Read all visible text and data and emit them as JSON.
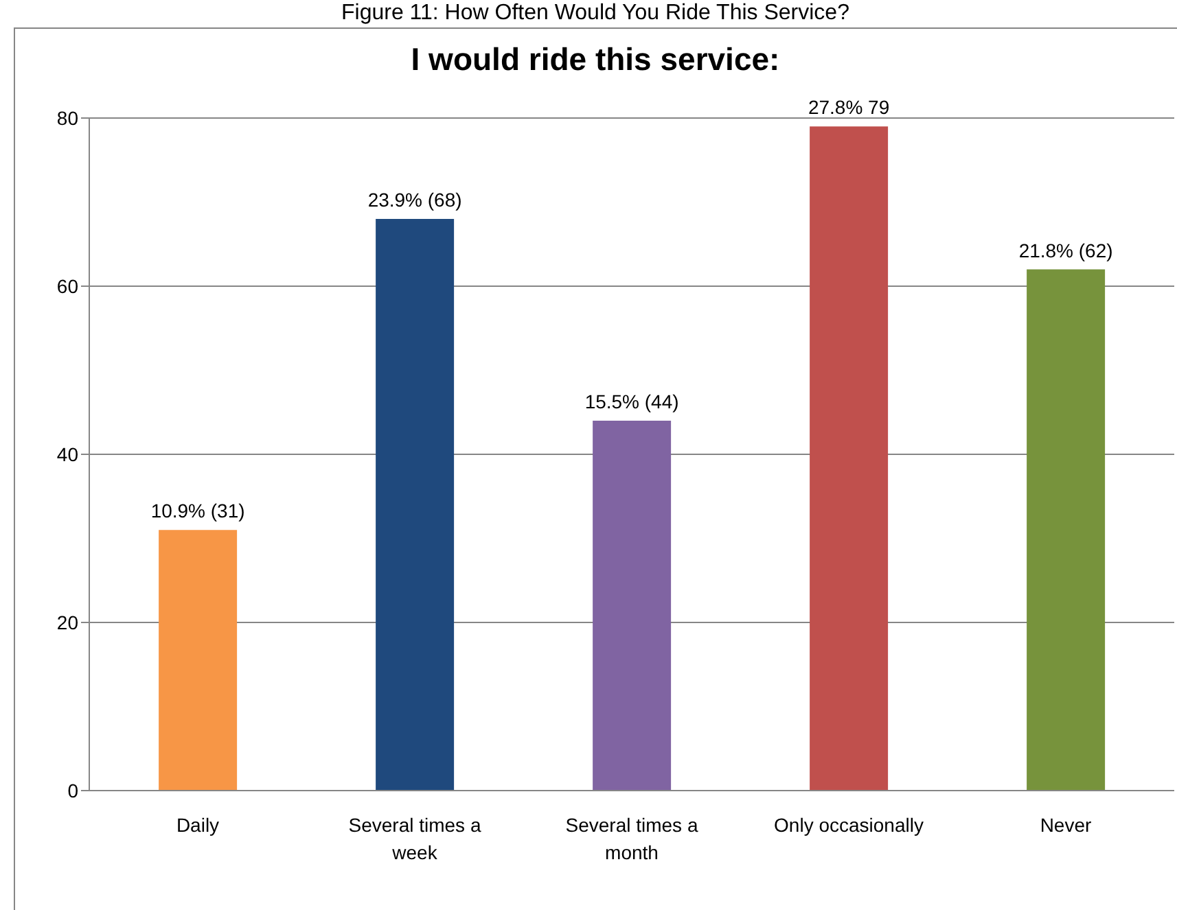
{
  "chart_data": {
    "type": "bar",
    "title": "I would ride this service:",
    "annotations": [
      "Figure 11: How Often Would You Ride This Service?"
    ],
    "categories": [
      "Daily",
      "Several times a week",
      "Several times a month",
      "Only occasionally",
      "Never"
    ],
    "values": [
      31,
      68,
      44,
      79,
      62
    ],
    "colors": [
      "#f79646",
      "#1f497d",
      "#8064a2",
      "#c0504d",
      "#77933c"
    ],
    "value_labels": [
      "10.9% (31)",
      "23.9% (68)",
      "15.5% (44)",
      "27.8% 79",
      "21.8% (62)"
    ],
    "ylim": [
      0,
      80
    ],
    "yticks": [
      0,
      20,
      40,
      60,
      80
    ],
    "grid": "y"
  }
}
